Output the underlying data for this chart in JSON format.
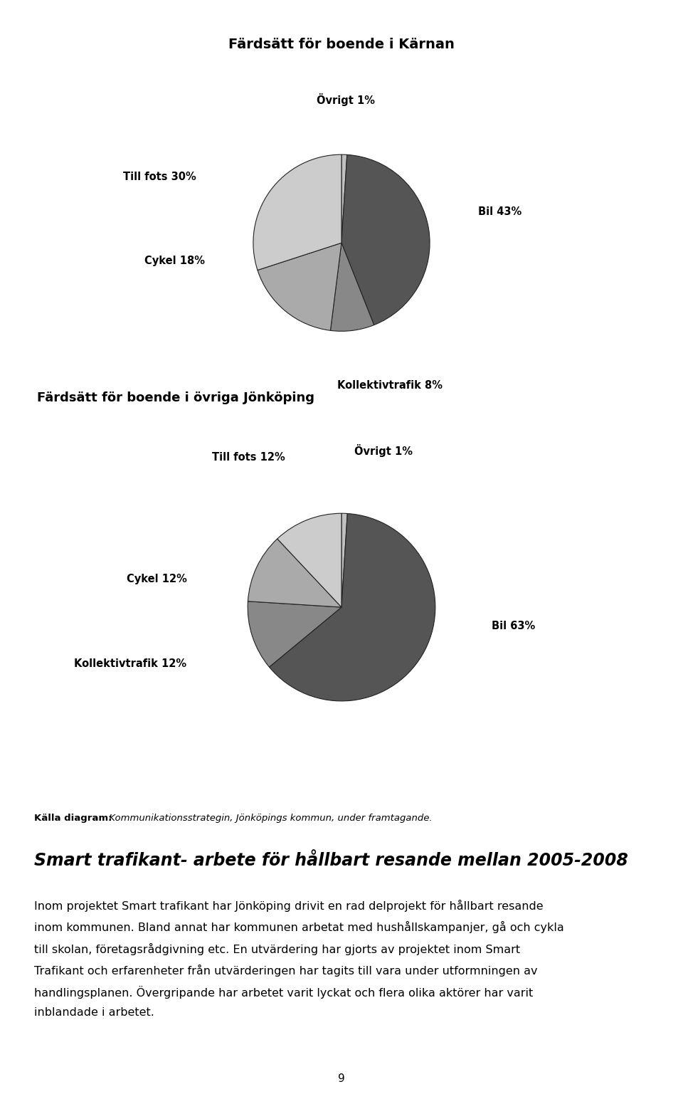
{
  "title1": "Färdsätt för boende i Kärnan",
  "title2": "Färdsätt för boende i övriga Jönköping",
  "pie1_labels": [
    "Övrigt 1%",
    "Bil 43%",
    "Kollektivtrafik 8%",
    "Cykel 18%",
    "Till fots 30%"
  ],
  "pie1_values": [
    1,
    43,
    8,
    18,
    30
  ],
  "pie1_colors": [
    "#c0c0c0",
    "#555555",
    "#888888",
    "#aaaaaa",
    "#cccccc"
  ],
  "pie2_labels": [
    "Övrigt 1%",
    "Bil 63%",
    "Kollektivtrafik 12%",
    "Cykel 12%",
    "Till fots 12%"
  ],
  "pie2_values": [
    1,
    63,
    12,
    12,
    12
  ],
  "pie2_colors": [
    "#c0c0c0",
    "#555555",
    "#888888",
    "#aaaaaa",
    "#cccccc"
  ],
  "source_bold": "Källa diagram:",
  "source_italic": " Kommunikationsstrategin, Jönköpings kommun, under framtagande.",
  "section_title": "Smart trafikant- arbete för hållbart resande mellan 2005-2008",
  "para_lines": [
    "Inom projektet Smart trafikant har Jönköping drivit en rad delprojekt för hållbart resande",
    "inom kommunen. Bland annat har kommunen arbetat med hushållskampanjer, gå och cykla",
    "till skolan, företagsrådgivning etc. En utvärdering har gjorts av projektet inom Smart",
    "Trafikant och erfarenheter från utvärderingen har tagits till vara under utformningen av",
    "handlingsplanen. Övergripande har arbetet varit lyckat och flera olika aktörer har varit",
    "inblandade i arbetet."
  ],
  "page_number": "9",
  "bg_color": "#ffffff",
  "text_color": "#000000",
  "title1_fontsize": 14,
  "title2_fontsize": 13,
  "source_fontsize": 9.5,
  "section_title_fontsize": 17,
  "paragraph_fontsize": 11.5,
  "page_fontsize": 11,
  "label_fontsize": 10.5
}
